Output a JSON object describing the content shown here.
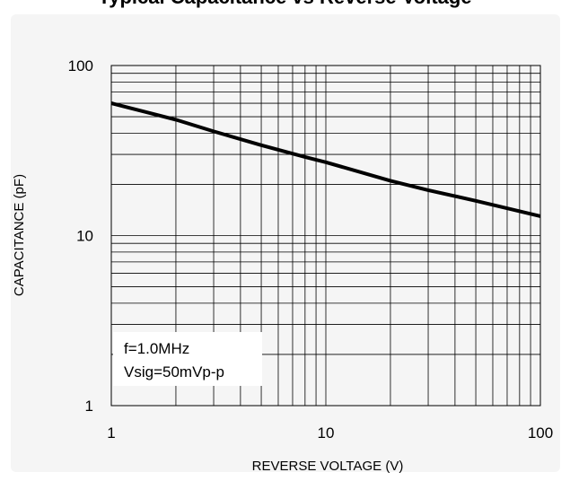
{
  "chart_data": {
    "type": "line",
    "title": "Typical Capacitance vs Reverse Voltage",
    "xlabel": "REVERSE VOLTAGE (V)",
    "ylabel": "CAPACITANCE (pF)",
    "x_scale": "log",
    "y_scale": "log",
    "xlim": [
      1,
      100
    ],
    "ylim": [
      1,
      100
    ],
    "x_ticks": [
      {
        "value": 1,
        "label": "1"
      },
      {
        "value": 10,
        "label": "10"
      },
      {
        "value": 100,
        "label": "100"
      }
    ],
    "y_ticks": [
      {
        "value": 1,
        "label": "1"
      },
      {
        "value": 10,
        "label": "10"
      },
      {
        "value": 100,
        "label": "100"
      }
    ],
    "grid": true,
    "series": [
      {
        "x": [
          1,
          2,
          3,
          5,
          8,
          10,
          20,
          30,
          50,
          100
        ],
        "y": [
          60,
          48,
          41,
          34,
          29,
          27,
          21,
          18.5,
          16,
          13
        ],
        "color": "#000000"
      }
    ],
    "annotations": [
      "f=1.0MHz",
      "Vsig=50mVp-p"
    ]
  }
}
